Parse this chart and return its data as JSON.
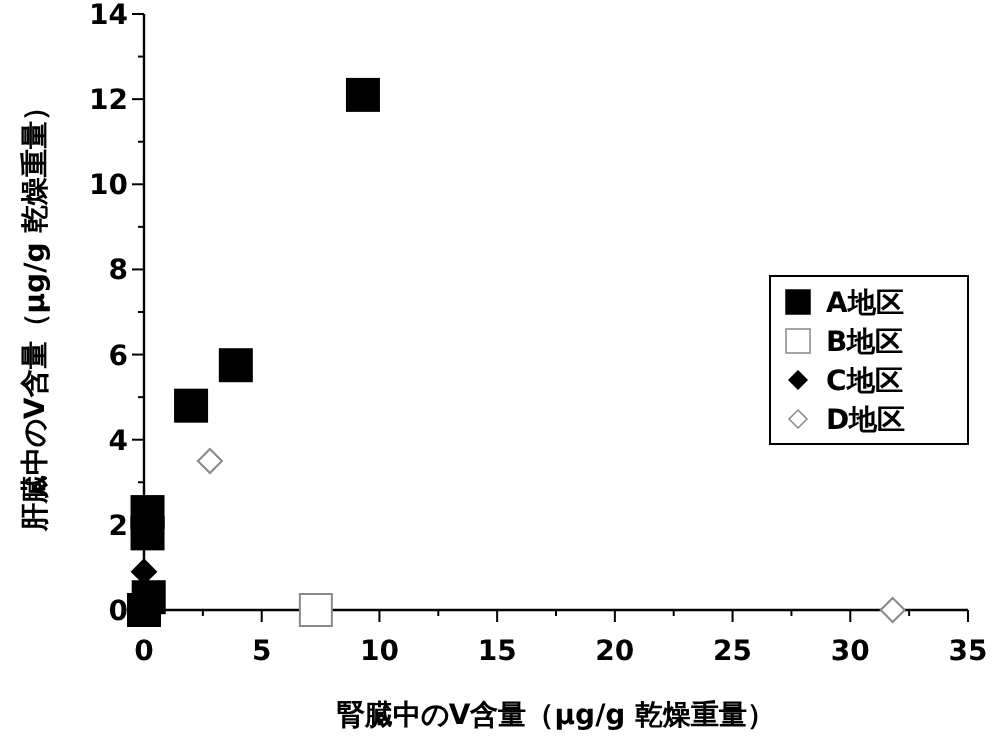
{
  "chart_data": {
    "type": "scatter",
    "xlabel": "腎臓中のV含量（μg/g 乾燥重量）",
    "ylabel": "肝臓中のV含量（μg/g 乾燥重量）",
    "xlim": [
      0,
      35
    ],
    "xticks": [
      0,
      5,
      10,
      15,
      20,
      25,
      30,
      35
    ],
    "ylim": [
      0,
      14
    ],
    "yticks": [
      0,
      2,
      4,
      6,
      8,
      10,
      12,
      14
    ],
    "grid": false,
    "legend": "right",
    "series": [
      {
        "name": "A地区",
        "color": "#000000",
        "marker": "square",
        "x": [
          9.3,
          3.9,
          2.0,
          0.15,
          0.15,
          0.2,
          0
        ],
        "values": [
          12.1,
          5.75,
          4.8,
          2.3,
          1.8,
          0.3,
          0
        ]
      },
      {
        "name": "B地区",
        "color": "#888888",
        "marker": "square",
        "x": [
          7.3
        ],
        "values": [
          0
        ]
      },
      {
        "name": "C地区",
        "color": "#000000",
        "marker": "diamond",
        "x": [
          0
        ],
        "values": [
          0.9
        ]
      },
      {
        "name": "D地区",
        "color": "#888888",
        "marker": "diamond",
        "x": [
          2.8,
          31.8
        ],
        "values": [
          3.5,
          0
        ]
      }
    ]
  }
}
